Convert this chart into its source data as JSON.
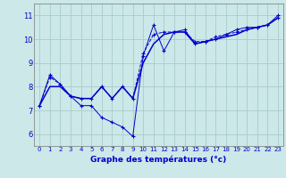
{
  "title": "Graphe des températures (°c)",
  "background_color": "#cce8e8",
  "line_color": "#0000cc",
  "xlim": [
    -0.5,
    23.5
  ],
  "ylim": [
    5.5,
    11.5
  ],
  "xticks": [
    0,
    1,
    2,
    3,
    4,
    5,
    6,
    7,
    8,
    9,
    10,
    11,
    12,
    13,
    14,
    15,
    16,
    17,
    18,
    19,
    20,
    21,
    22,
    23
  ],
  "yticks": [
    6,
    7,
    8,
    9,
    10,
    11
  ],
  "grid_color": "#aacccc",
  "series": [
    {
      "x": [
        0,
        1,
        2,
        3,
        4,
        5,
        6,
        7,
        8,
        9,
        10,
        11,
        12,
        13,
        14,
        15,
        16,
        17,
        18,
        19,
        20,
        21,
        22,
        23
      ],
      "y": [
        7.2,
        8.5,
        8.1,
        7.6,
        7.2,
        7.2,
        6.7,
        6.5,
        6.3,
        5.9,
        9.3,
        10.6,
        9.5,
        10.3,
        10.4,
        9.8,
        9.9,
        10.0,
        10.2,
        10.4,
        10.5,
        10.5,
        10.6,
        11.0
      ],
      "style": "-",
      "marker": "+",
      "lw": 0.7,
      "ms": 2.5
    },
    {
      "x": [
        0,
        1,
        2,
        3,
        4,
        5,
        6,
        7,
        8,
        9,
        10,
        11,
        12,
        13,
        14,
        15,
        16,
        17,
        18,
        19,
        20,
        21,
        22,
        23
      ],
      "y": [
        7.2,
        8.4,
        8.1,
        7.6,
        7.5,
        7.5,
        8.0,
        7.5,
        8.0,
        7.5,
        9.4,
        10.2,
        10.3,
        10.3,
        10.3,
        9.9,
        9.9,
        10.1,
        10.2,
        10.3,
        10.4,
        10.5,
        10.6,
        10.9
      ],
      "style": "--",
      "marker": "+",
      "lw": 0.7,
      "ms": 2.5
    },
    {
      "x": [
        0,
        1,
        2,
        3,
        4,
        5,
        6,
        7,
        8,
        9,
        10,
        11,
        12,
        13,
        14,
        15,
        16,
        17,
        18,
        19,
        20,
        21,
        22,
        23
      ],
      "y": [
        7.2,
        8.0,
        8.0,
        7.6,
        7.5,
        7.5,
        8.0,
        7.5,
        8.0,
        7.5,
        9.0,
        9.8,
        10.2,
        10.3,
        10.3,
        9.8,
        9.9,
        10.0,
        10.1,
        10.2,
        10.4,
        10.5,
        10.6,
        10.9
      ],
      "style": "-",
      "marker": null,
      "lw": 1.1,
      "ms": 0
    }
  ],
  "xlabel_fontsize": 6.5,
  "xlabel_fontweight": "bold",
  "ytick_fontsize": 6.0,
  "xtick_fontsize": 5.0
}
